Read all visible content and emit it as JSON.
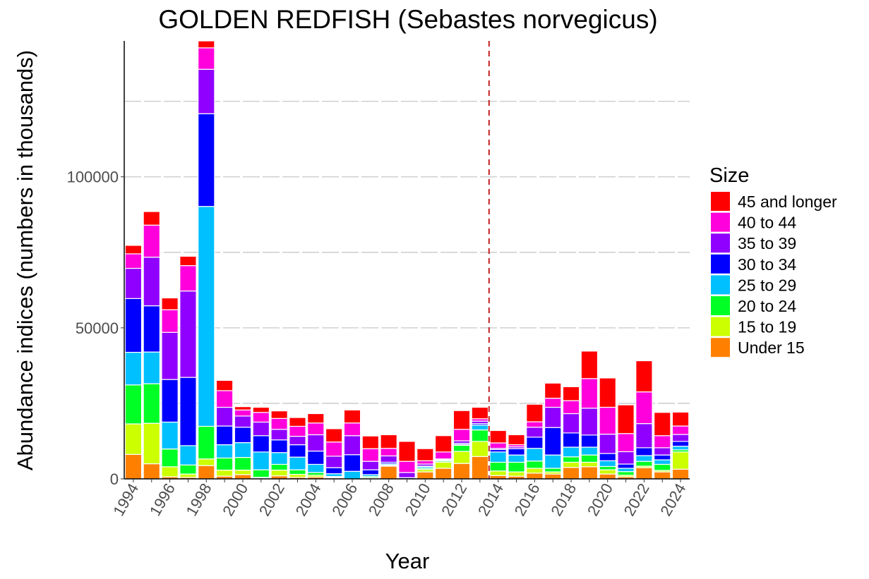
{
  "chart_data": {
    "type": "bar",
    "stacked": true,
    "title": "GOLDEN REDFISH (Sebastes norvegicus)",
    "xlabel": "Year",
    "ylabel": "Abundance indices (numbers in thousands)",
    "ylim": [
      0,
      145000
    ],
    "xlim": [
      1993.5,
      2024.5
    ],
    "yticks": [
      0,
      50000,
      100000
    ],
    "ytick_labels": [
      "0",
      "50000",
      "100000"
    ],
    "minor_gridlines": [
      25000,
      75000,
      125000
    ],
    "grid": "horizontal dashed",
    "xtick_labels": [
      "1994",
      "1996",
      "1998",
      "2000",
      "2002",
      "2004",
      "2006",
      "2008",
      "2010",
      "2012",
      "2014",
      "2016",
      "2018",
      "2020",
      "2022",
      "2024"
    ],
    "vline": {
      "x": 2013.5,
      "style": "dashed",
      "color": "#C0201E"
    },
    "legend": {
      "title": "Size",
      "placement": "right"
    },
    "categories": [
      1994,
      1995,
      1996,
      1997,
      1998,
      1999,
      2000,
      2001,
      2002,
      2003,
      2004,
      2005,
      2006,
      2007,
      2008,
      2009,
      2010,
      2011,
      2012,
      2013,
      2014,
      2015,
      2016,
      2017,
      2018,
      2019,
      2020,
      2021,
      2022,
      2023,
      2024
    ],
    "series": [
      {
        "name": "Under 15",
        "color": "#FF8000",
        "values": [
          8100,
          5000,
          700,
          500,
          4400,
          900,
          1400,
          300,
          1000,
          500,
          600,
          300,
          0,
          100,
          4200,
          0,
          2300,
          3500,
          5100,
          7400,
          1100,
          900,
          1900,
          1600,
          3800,
          4000,
          1600,
          700,
          3700,
          2300,
          3200
        ]
      },
      {
        "name": "15 to 19",
        "color": "#CCFF00",
        "values": [
          10100,
          13400,
          3300,
          1100,
          2200,
          2000,
          1500,
          200,
          1900,
          1000,
          600,
          200,
          0,
          300,
          200,
          0,
          800,
          2000,
          4000,
          5000,
          1500,
          1400,
          1600,
          700,
          1700,
          1500,
          1400,
          500,
          500,
          500,
          5700
        ]
      },
      {
        "name": "20 to 24",
        "color": "#00FF24",
        "values": [
          12900,
          13100,
          5900,
          3000,
          10800,
          4000,
          4200,
          2500,
          1900,
          1500,
          900,
          300,
          0,
          400,
          200,
          0,
          400,
          400,
          2000,
          3800,
          2900,
          3200,
          2400,
          1200,
          1800,
          2400,
          1100,
          1200,
          1600,
          2000,
          700
        ]
      },
      {
        "name": "25 to 29",
        "color": "#00C0FF",
        "values": [
          10800,
          10500,
          8900,
          6400,
          72800,
          4400,
          4900,
          5900,
          3900,
          4200,
          2700,
          900,
          2500,
          600,
          400,
          0,
          500,
          300,
          300,
          1600,
          3400,
          2400,
          4200,
          4400,
          3200,
          2600,
          1900,
          1100,
          1900,
          1500,
          1200
        ]
      },
      {
        "name": "30 to 34",
        "color": "#0000FF",
        "values": [
          17800,
          15300,
          14100,
          22600,
          30700,
          6200,
          5100,
          5400,
          4200,
          4100,
          4400,
          2000,
          5500,
          1600,
          500,
          400,
          200,
          200,
          400,
          500,
          800,
          2100,
          3700,
          9100,
          4700,
          4000,
          2400,
          1400,
          2600,
          1600,
          1600
        ]
      },
      {
        "name": "35 to 39",
        "color": "#9000FF",
        "values": [
          10000,
          16100,
          15600,
          28600,
          14700,
          6200,
          3700,
          4500,
          3500,
          2800,
          5400,
          3800,
          6300,
          2800,
          2100,
          1700,
          700,
          200,
          800,
          800,
          400,
          600,
          3300,
          6700,
          6400,
          8900,
          6400,
          4100,
          8000,
          2400,
          2300
        ]
      },
      {
        "name": "40 to 44",
        "color": "#FF00DC",
        "values": [
          4800,
          10600,
          7500,
          8400,
          7100,
          5500,
          2000,
          3200,
          3600,
          3300,
          3900,
          4700,
          4200,
          4200,
          2500,
          3700,
          1100,
          2300,
          3800,
          800,
          1800,
          700,
          1800,
          3000,
          4300,
          9800,
          8900,
          6000,
          10500,
          4000,
          2800
        ]
      },
      {
        "name": "45 and longer",
        "color": "#FF0000",
        "values": [
          2800,
          4500,
          3900,
          3100,
          2300,
          3400,
          1100,
          1700,
          2500,
          2900,
          3100,
          4400,
          4300,
          4200,
          4500,
          6600,
          4000,
          5400,
          6200,
          3800,
          4100,
          3300,
          5800,
          5000,
          4600,
          9100,
          9700,
          9500,
          10300,
          7700,
          4600
        ]
      }
    ]
  }
}
